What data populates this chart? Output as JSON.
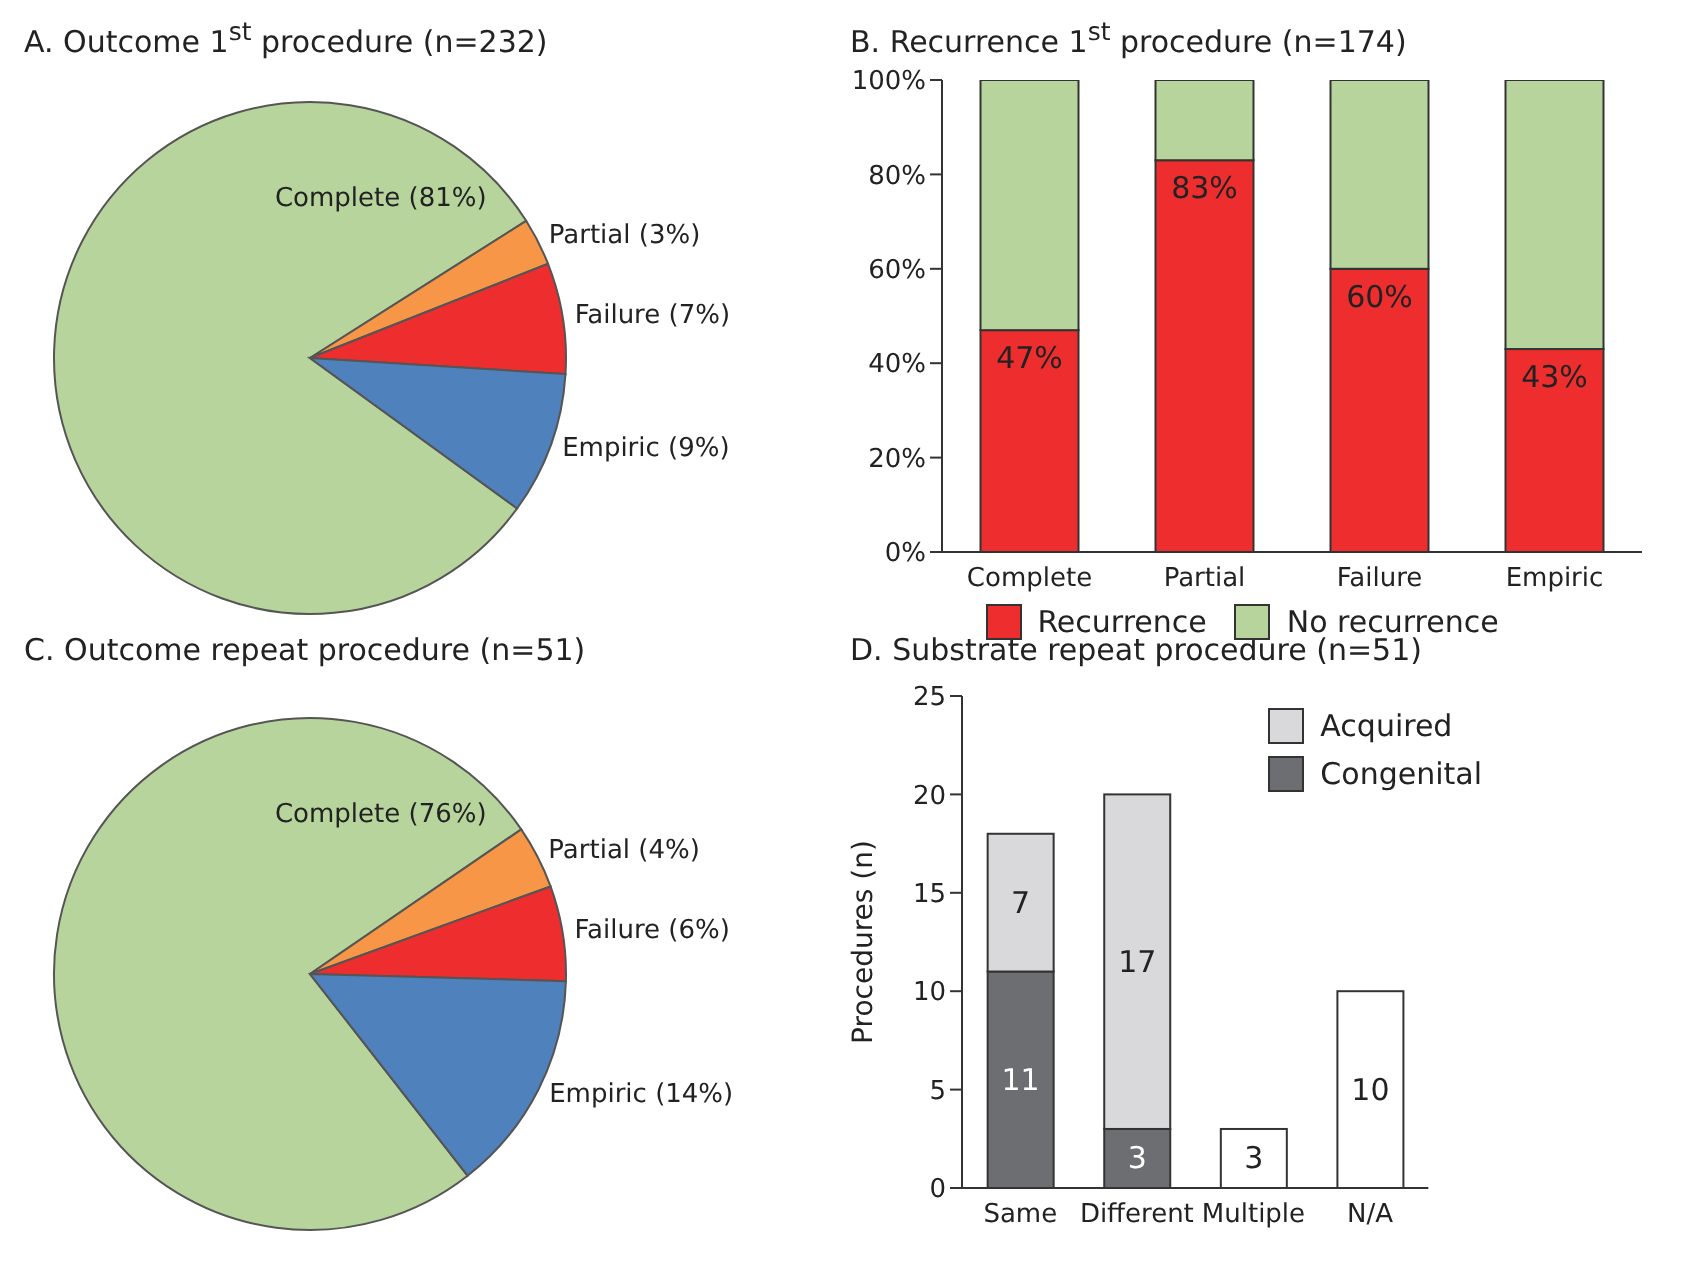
{
  "chart_data": [
    {
      "type": "pie",
      "title": "A. Outcome 1$^{st}$ procedure (n=232)",
      "categories": [
        "Complete",
        "Partial",
        "Failure",
        "Empiric"
      ],
      "values": [
        81,
        3,
        7,
        9
      ],
      "colors": [
        "#b6d49b",
        "#f79646",
        "#ee2e2e",
        "#4f81bd"
      ],
      "value_labels": [
        "(81%)",
        "(3%)",
        "(7%)",
        "(9%)"
      ]
    },
    {
      "type": "bar",
      "title": "B. Recurrence 1$^{st}$ procedure (n=174)",
      "categories": [
        "Complete",
        "Partial",
        "Failure",
        "Empiric"
      ],
      "stacked": true,
      "series": [
        {
          "name": "Recurrence",
          "color": "#ee2e2e",
          "values": [
            47,
            83,
            60,
            43
          ],
          "value_labels": [
            "47%",
            "83%",
            "60%",
            "43%"
          ]
        },
        {
          "name": "No recurrence",
          "color": "#b6d49b",
          "values": [
            53,
            17,
            40,
            57
          ]
        }
      ],
      "ylim": [
        0,
        100
      ],
      "yticks": [
        {
          "value": 0,
          "label": "0%"
        },
        {
          "value": 20,
          "label": "20%"
        },
        {
          "value": 40,
          "label": "40%"
        },
        {
          "value": 60,
          "label": "60%"
        },
        {
          "value": 80,
          "label": "80%"
        },
        {
          "value": 100,
          "label": "100%"
        }
      ],
      "legend": "bottom"
    },
    {
      "type": "pie",
      "title": "C. Outcome repeat procedure (n=51)",
      "categories": [
        "Complete",
        "Partial",
        "Failure",
        "Empiric"
      ],
      "values": [
        76,
        4,
        6,
        14
      ],
      "colors": [
        "#b6d49b",
        "#f79646",
        "#ee2e2e",
        "#4f81bd"
      ],
      "value_labels": [
        "(76%)",
        "(4%)",
        "(6%)",
        "(14%)"
      ]
    },
    {
      "type": "bar",
      "title": "D. Substrate repeat procedure (n=51)",
      "categories": [
        "Same",
        "Different",
        "Multiple",
        "N/A"
      ],
      "stacked": true,
      "ylabel": "Procedures (n)",
      "series": [
        {
          "name": "Congenital",
          "color": "#6d6e71",
          "values": [
            11,
            3,
            null,
            null
          ],
          "value_labels": [
            "11",
            "3",
            null,
            null
          ]
        },
        {
          "name": "Acquired",
          "color": "#d9d9db",
          "values": [
            7,
            17,
            null,
            null
          ],
          "value_labels": [
            "7",
            "17",
            null,
            null
          ]
        },
        {
          "color": "#ffffff",
          "values": [
            null,
            null,
            3,
            10
          ],
          "value_labels": [
            null,
            null,
            "3",
            "10"
          ]
        }
      ],
      "ylim": [
        0,
        25
      ],
      "yticks": [
        0,
        5,
        10,
        15,
        20,
        25
      ],
      "legend": "top right"
    }
  ]
}
